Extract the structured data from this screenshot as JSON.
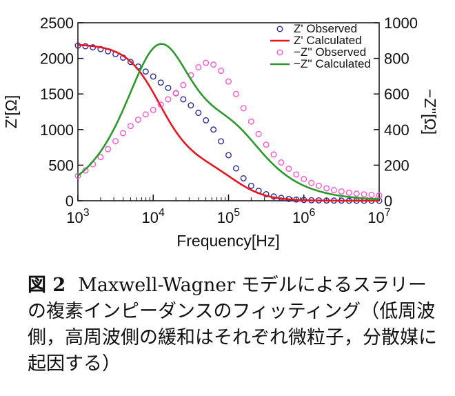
{
  "chart_data": {
    "type": "line",
    "xlabel": "Frequency[Hz]",
    "x_scale": "log",
    "xlim": [
      1000,
      10000000
    ],
    "x_tick_labels": [
      {
        "base": "10",
        "exp": "3"
      },
      {
        "base": "10",
        "exp": "4"
      },
      {
        "base": "10",
        "exp": "5"
      },
      {
        "base": "10",
        "exp": "6"
      },
      {
        "base": "10",
        "exp": "7"
      }
    ],
    "ylabel_left": "Z'[Ω]",
    "ylim_left": [
      0,
      2500
    ],
    "yticks_left": [
      "0",
      "500",
      "1000",
      "1500",
      "2000",
      "2500"
    ],
    "ylabel_right": "−Z''[Ω]",
    "ylim_right": [
      0,
      1000
    ],
    "yticks_right": [
      "0",
      "200",
      "400",
      "600",
      "800",
      "1000"
    ],
    "legend": [
      {
        "label": "Z' Observed",
        "style": "circle",
        "color": "#2b2b9c"
      },
      {
        "label": "Z' Calculated",
        "style": "line",
        "color": "#e8141e"
      },
      {
        "label": "−Z'' Observed",
        "style": "circle",
        "color": "#ff55cc"
      },
      {
        "label": "−Z'' Calculated",
        "style": "line",
        "color": "#2a9a2a"
      }
    ],
    "legend_position": "top-right",
    "model": {
      "r_inf": 0,
      "r_low": 1650,
      "f_low": 12000,
      "r_high": 550,
      "f_high": 120000
    },
    "series": [
      {
        "name": "Z' Observed",
        "axis": "left",
        "kind": "markers",
        "color": "#2b2b9c",
        "x": [
          1000,
          1260,
          1580,
          2000,
          2510,
          3160,
          3980,
          5010,
          6310,
          7940,
          10000,
          12600,
          15800,
          20000,
          25100,
          31600,
          39800,
          50100,
          63100,
          79400,
          100000,
          126000,
          158000,
          200000,
          251000,
          316000,
          398000,
          501000,
          631000,
          794000,
          1000000,
          1260000,
          1580000,
          2000000,
          2510000,
          3160000,
          3980000,
          5010000,
          6310000,
          7940000,
          10000000
        ],
        "y": [
          2180,
          2170,
          2155,
          2130,
          2100,
          2060,
          2010,
          1950,
          1885,
          1815,
          1745,
          1660,
          1585,
          1510,
          1425,
          1340,
          1235,
          1130,
          1000,
          835,
          640,
          455,
          315,
          210,
          140,
          92,
          60,
          40,
          26,
          17,
          11,
          7,
          5,
          3,
          2,
          2,
          1,
          1,
          1,
          1,
          1
        ]
      },
      {
        "name": "Z' Calculated",
        "axis": "left",
        "kind": "line",
        "color": "#e8141e",
        "source": "model_real"
      },
      {
        "name": "−Z'' Observed",
        "axis": "right",
        "kind": "markers",
        "color": "#ff55cc",
        "x": [
          1000,
          1260,
          1580,
          2000,
          2510,
          3160,
          3980,
          5010,
          6310,
          7940,
          10000,
          12600,
          15800,
          20000,
          25100,
          31600,
          39800,
          50100,
          63100,
          79400,
          100000,
          126000,
          158000,
          200000,
          251000,
          316000,
          398000,
          501000,
          631000,
          794000,
          1000000,
          1260000,
          1580000,
          2000000,
          2510000,
          3160000,
          3980000,
          5010000,
          6310000,
          7940000,
          10000000
        ],
        "y": [
          140,
          170,
          205,
          245,
          290,
          335,
          380,
          420,
          455,
          485,
          510,
          540,
          570,
          605,
          650,
          705,
          750,
          775,
          765,
          730,
          670,
          600,
          520,
          445,
          375,
          315,
          260,
          215,
          180,
          148,
          122,
          100,
          84,
          70,
          60,
          52,
          45,
          40,
          36,
          33,
          30
        ]
      },
      {
        "name": "−Z'' Calculated",
        "axis": "right",
        "kind": "line",
        "color": "#2a9a2a",
        "source": "model_imag"
      }
    ]
  },
  "caption": {
    "label": "図 2",
    "text": "Maxwell-Wagner モデルによるスラリーの複素インピーダンスのフィッティング（低周波側，高周波側の緩和はそれぞれ微粒子，分散媒に起因する）"
  }
}
